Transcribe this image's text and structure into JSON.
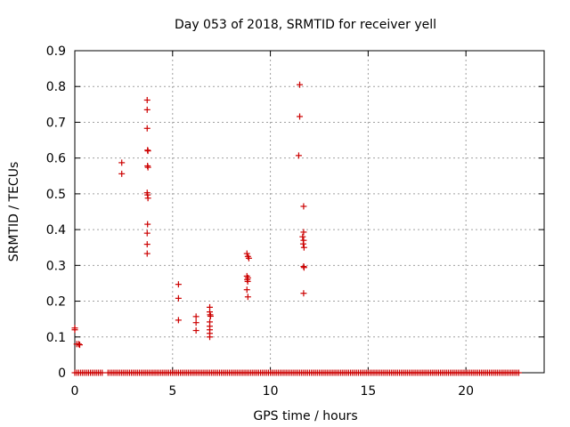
{
  "chart_data": {
    "type": "scatter",
    "title": "Day 053 of 2018, SRMTID for receiver yell",
    "xlabel": "GPS time / hours",
    "ylabel": "SRMTID / TECUs",
    "xlim": [
      0,
      24
    ],
    "ylim": [
      0,
      0.9
    ],
    "xticks": [
      0,
      5,
      10,
      15,
      20
    ],
    "xtick_labels": [
      "0",
      "5",
      "10",
      "15",
      "20"
    ],
    "yticks": [
      0,
      0.1,
      0.2,
      0.3,
      0.4,
      0.5,
      0.6,
      0.7,
      0.8,
      0.9
    ],
    "ytick_labels": [
      "0",
      "0.1",
      "0.2",
      "0.3",
      "0.4",
      "0.5",
      "0.6",
      "0.7",
      "0.8",
      "0.9"
    ],
    "grid": true,
    "marker": "+",
    "series_color": "#cc0000",
    "series": [
      {
        "name": "SRMTID",
        "points": [
          [
            0.0,
            0.125
          ],
          [
            0.0,
            0.12
          ],
          [
            0.1,
            0.08
          ],
          [
            0.2,
            0.08
          ],
          [
            0.25,
            0.078
          ],
          [
            2.4,
            0.587
          ],
          [
            2.4,
            0.556
          ],
          [
            3.7,
            0.762
          ],
          [
            3.7,
            0.735
          ],
          [
            3.7,
            0.683
          ],
          [
            3.72,
            0.622
          ],
          [
            3.74,
            0.62
          ],
          [
            3.72,
            0.578
          ],
          [
            3.74,
            0.574
          ],
          [
            3.7,
            0.503
          ],
          [
            3.72,
            0.497
          ],
          [
            3.74,
            0.488
          ],
          [
            3.72,
            0.415
          ],
          [
            3.7,
            0.39
          ],
          [
            3.7,
            0.359
          ],
          [
            3.7,
            0.333
          ],
          [
            5.3,
            0.247
          ],
          [
            5.3,
            0.208
          ],
          [
            5.3,
            0.147
          ],
          [
            6.2,
            0.157
          ],
          [
            6.2,
            0.14
          ],
          [
            6.2,
            0.118
          ],
          [
            6.9,
            0.183
          ],
          [
            6.9,
            0.17
          ],
          [
            6.92,
            0.162
          ],
          [
            6.94,
            0.158
          ],
          [
            6.9,
            0.142
          ],
          [
            6.9,
            0.13
          ],
          [
            6.9,
            0.12
          ],
          [
            6.9,
            0.11
          ],
          [
            6.9,
            0.1
          ],
          [
            8.8,
            0.333
          ],
          [
            8.85,
            0.325
          ],
          [
            8.9,
            0.32
          ],
          [
            8.8,
            0.27
          ],
          [
            8.85,
            0.265
          ],
          [
            8.82,
            0.26
          ],
          [
            8.84,
            0.255
          ],
          [
            8.8,
            0.232
          ],
          [
            8.85,
            0.212
          ],
          [
            11.5,
            0.805
          ],
          [
            11.5,
            0.716
          ],
          [
            11.45,
            0.607
          ],
          [
            11.7,
            0.465
          ],
          [
            11.7,
            0.393
          ],
          [
            11.65,
            0.38
          ],
          [
            11.7,
            0.37
          ],
          [
            11.68,
            0.36
          ],
          [
            11.72,
            0.35
          ],
          [
            11.7,
            0.297
          ],
          [
            11.72,
            0.294
          ],
          [
            11.7,
            0.222
          ]
        ],
        "zero_band_hours": [
          [
            0.0,
            1.4
          ],
          [
            1.7,
            22.7
          ]
        ],
        "zero_value": 0
      }
    ]
  }
}
